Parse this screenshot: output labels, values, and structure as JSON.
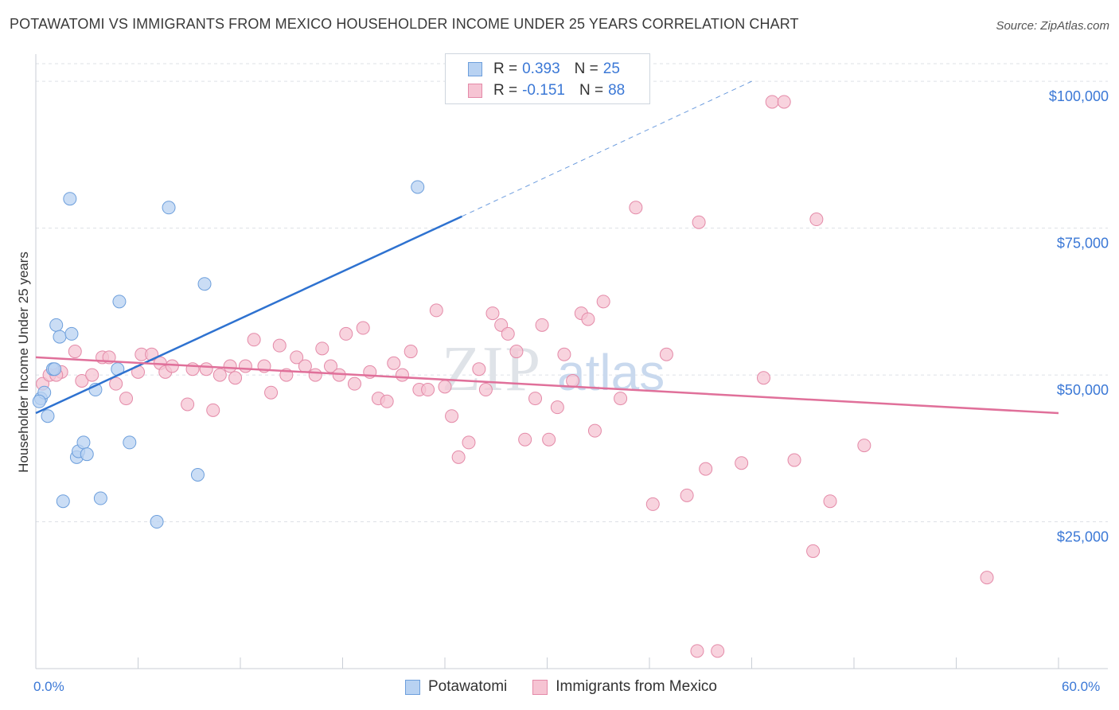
{
  "title": "POTAWATOMI VS IMMIGRANTS FROM MEXICO HOUSEHOLDER INCOME UNDER 25 YEARS CORRELATION CHART",
  "source": "Source: ZipAtlas.com",
  "watermark": {
    "zip": "ZIP",
    "atlas": "atlas"
  },
  "legend": {
    "r_label": "R =",
    "n_label": "N =",
    "rows": [
      {
        "r": "0.393",
        "n": "25"
      },
      {
        "r": "-0.151",
        "n": "88"
      }
    ]
  },
  "colors": {
    "blue_fill": "#b8d2f2",
    "blue_stroke": "#6d9fdc",
    "blue_line": "#2e72d0",
    "pink_fill": "#f6c4d3",
    "pink_stroke": "#e48aa8",
    "pink_line": "#e0709a",
    "tick_label": "#3b78d6",
    "grid": "#dde1e6"
  },
  "chart_data": {
    "type": "scatter",
    "xlabel": "",
    "ylabel": "Householder Income Under 25 years",
    "xlim": [
      0,
      60
    ],
    "ylim": [
      0,
      103000
    ],
    "x_tick_labels": [
      "0.0%",
      "60.0%"
    ],
    "y_ticks": [
      25000,
      50000,
      75000,
      100000
    ],
    "y_tick_labels": [
      "$25,000",
      "$50,000",
      "$75,000",
      "$100,000"
    ],
    "series": [
      {
        "name": "Potawatomi",
        "points": [
          [
            0.3,
            46000
          ],
          [
            0.5,
            47000
          ],
          [
            0.7,
            43000
          ],
          [
            1.0,
            51000
          ],
          [
            1.2,
            58500
          ],
          [
            1.4,
            56500
          ],
          [
            2.0,
            80000
          ],
          [
            2.1,
            57000
          ],
          [
            2.4,
            36000
          ],
          [
            2.5,
            37000
          ],
          [
            1.6,
            28500
          ],
          [
            2.8,
            38500
          ],
          [
            3.0,
            36500
          ],
          [
            3.5,
            47500
          ],
          [
            3.8,
            29000
          ],
          [
            4.8,
            51000
          ],
          [
            4.9,
            62500
          ],
          [
            5.5,
            38500
          ],
          [
            7.1,
            25000
          ],
          [
            7.8,
            78500
          ],
          [
            9.5,
            33000
          ],
          [
            9.9,
            65500
          ],
          [
            22.4,
            82000
          ],
          [
            0.2,
            45500
          ],
          [
            1.1,
            51000
          ]
        ],
        "trend": {
          "x0": 0,
          "y0": 43500,
          "x1": 25,
          "y1": 77000,
          "dash_to_x": 42,
          "dash_to_y": 100000
        }
      },
      {
        "name": "Immigrants from Mexico",
        "points": [
          [
            0.4,
            48500
          ],
          [
            0.8,
            50000
          ],
          [
            1.5,
            50500
          ],
          [
            2.3,
            54000
          ],
          [
            2.7,
            49000
          ],
          [
            3.3,
            50000
          ],
          [
            3.9,
            53000
          ],
          [
            4.3,
            53000
          ],
          [
            4.7,
            48500
          ],
          [
            5.3,
            46000
          ],
          [
            6.0,
            50500
          ],
          [
            6.2,
            53500
          ],
          [
            6.8,
            53500
          ],
          [
            7.3,
            52000
          ],
          [
            7.6,
            50500
          ],
          [
            8.0,
            51500
          ],
          [
            8.9,
            45000
          ],
          [
            9.2,
            51000
          ],
          [
            10.0,
            51000
          ],
          [
            10.4,
            44000
          ],
          [
            10.8,
            50000
          ],
          [
            11.4,
            51500
          ],
          [
            11.7,
            49500
          ],
          [
            12.3,
            51500
          ],
          [
            12.8,
            56000
          ],
          [
            13.4,
            51500
          ],
          [
            13.8,
            47000
          ],
          [
            14.3,
            55000
          ],
          [
            14.7,
            50000
          ],
          [
            15.3,
            53000
          ],
          [
            15.8,
            51500
          ],
          [
            16.4,
            50000
          ],
          [
            16.8,
            54500
          ],
          [
            17.3,
            51500
          ],
          [
            17.8,
            50000
          ],
          [
            18.2,
            57000
          ],
          [
            18.7,
            48500
          ],
          [
            19.2,
            58000
          ],
          [
            19.6,
            50500
          ],
          [
            20.1,
            46000
          ],
          [
            20.6,
            45500
          ],
          [
            21.0,
            52000
          ],
          [
            21.5,
            50000
          ],
          [
            22.0,
            54000
          ],
          [
            22.5,
            47500
          ],
          [
            23.0,
            47500
          ],
          [
            23.5,
            61000
          ],
          [
            24.0,
            48000
          ],
          [
            24.4,
            43000
          ],
          [
            24.8,
            36000
          ],
          [
            25.4,
            38500
          ],
          [
            26.0,
            51000
          ],
          [
            26.4,
            47500
          ],
          [
            26.8,
            60500
          ],
          [
            27.3,
            58500
          ],
          [
            27.7,
            57000
          ],
          [
            28.2,
            54000
          ],
          [
            28.7,
            39000
          ],
          [
            29.3,
            46000
          ],
          [
            29.7,
            58500
          ],
          [
            30.1,
            39000
          ],
          [
            30.6,
            44500
          ],
          [
            31.0,
            53500
          ],
          [
            31.5,
            49000
          ],
          [
            32.0,
            60500
          ],
          [
            32.4,
            59500
          ],
          [
            32.8,
            40500
          ],
          [
            33.3,
            62500
          ],
          [
            34.3,
            46000
          ],
          [
            35.2,
            78500
          ],
          [
            36.2,
            28000
          ],
          [
            37.0,
            53500
          ],
          [
            38.2,
            29500
          ],
          [
            38.9,
            76000
          ],
          [
            39.3,
            34000
          ],
          [
            41.4,
            35000
          ],
          [
            42.7,
            49500
          ],
          [
            43.2,
            96500
          ],
          [
            43.9,
            96500
          ],
          [
            44.5,
            35500
          ],
          [
            45.6,
            20000
          ],
          [
            45.8,
            76500
          ],
          [
            46.6,
            28500
          ],
          [
            48.6,
            38000
          ],
          [
            55.8,
            15500
          ],
          [
            38.8,
            3000
          ],
          [
            40.0,
            3000
          ],
          [
            1.2,
            50000
          ]
        ],
        "trend": {
          "x0": 0,
          "y0": 53000,
          "x1": 60,
          "y1": 43500
        }
      }
    ]
  }
}
